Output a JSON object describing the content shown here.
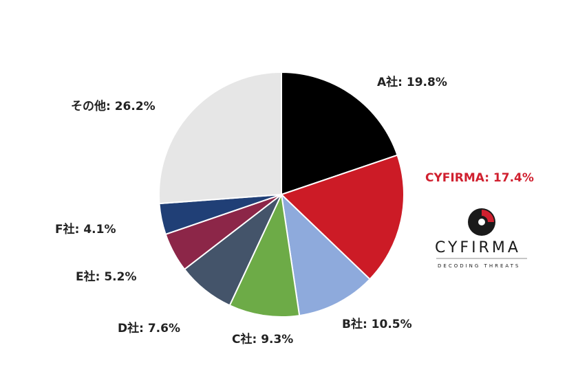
{
  "chart_data": {
    "type": "pie",
    "start_angle_deg": 0,
    "direction": "clockwise",
    "slices": [
      {
        "label": "A社: 19.8%",
        "name": "A社",
        "value": 19.8,
        "color": "#000000"
      },
      {
        "label": "CYFIRMA: 17.4%",
        "name": "CYFIRMA",
        "value": 17.4,
        "color": "#cc1b26",
        "highlight": true
      },
      {
        "label": "B社: 10.5%",
        "name": "B社",
        "value": 10.5,
        "color": "#8eaadc"
      },
      {
        "label": "C社: 9.3%",
        "name": "C社",
        "value": 9.3,
        "color": "#6dab47"
      },
      {
        "label": "D社: 7.6%",
        "name": "D社",
        "value": 7.6,
        "color": "#44546a"
      },
      {
        "label": "E社: 5.2%",
        "name": "E社",
        "value": 5.2,
        "color": "#8c2648"
      },
      {
        "label": "F社: 4.1%",
        "name": "F社",
        "value": 4.1,
        "color": "#203f76"
      },
      {
        "label": "その他: 26.2%",
        "name": "その他",
        "value": 26.2,
        "color": "#e6e6e6"
      }
    ]
  },
  "brand": {
    "name": "CYFIRMA",
    "tagline": "DECODING THREATS",
    "highlight_color": "#d0202f"
  }
}
